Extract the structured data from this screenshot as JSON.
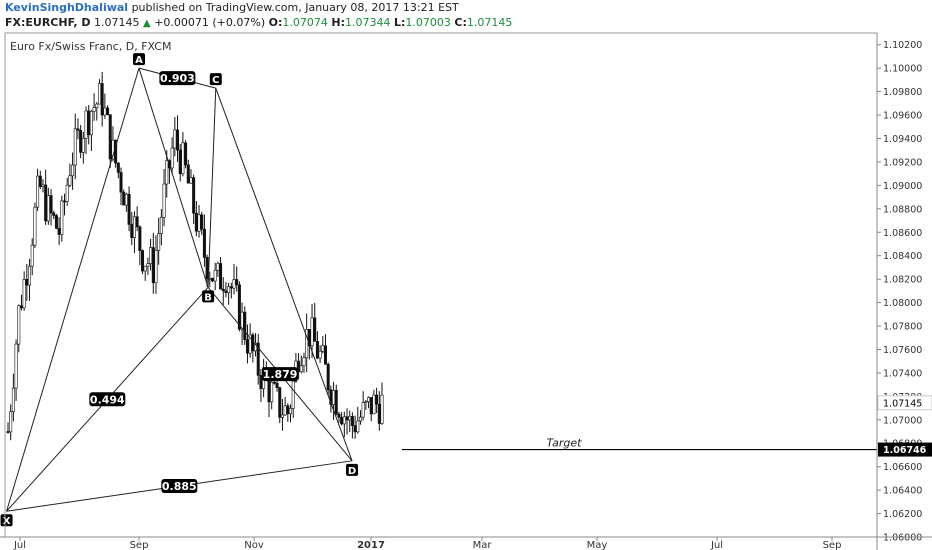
{
  "header": {
    "author": "KevinSinghDhaliwal",
    "published_text": "published on TradingView.com, January 08, 2017 13:21 EST",
    "symbol": "FX:EURCHF, D",
    "last": "1.07145",
    "change_arrow": "▲",
    "change": "+0.00071 (+0.07%)",
    "o_label": "O:",
    "o_value": "1.07074",
    "h_label": "H:",
    "h_value": "1.07344",
    "l_label": "L:",
    "l_value": "1.07003",
    "c_label": "C:",
    "c_value": "1.07145"
  },
  "chart_data": {
    "type": "candlestick",
    "title": "Euro Fx/Swiss Franc, D, FXCM",
    "x_tick_labels": [
      "Jul",
      "Sep",
      "Nov",
      "2017",
      "Mar",
      "May",
      "Jul",
      "Sep"
    ],
    "y_tick_labels": [
      "1.10200",
      "1.10000",
      "1.09800",
      "1.09600",
      "1.09400",
      "1.09200",
      "1.09000",
      "1.08800",
      "1.08600",
      "1.08400",
      "1.08200",
      "1.08000",
      "1.07800",
      "1.07600",
      "1.07400",
      "1.07200",
      "1.07000",
      "1.06800",
      "1.06600",
      "1.06400",
      "1.06200",
      "1.06000"
    ],
    "ylim": [
      1.06,
      1.103
    ],
    "last_price_label": "1.07145",
    "target_price_label": "1.06746",
    "target_label": "Target",
    "target_price": 1.06746,
    "pattern_points": [
      {
        "label": "X",
        "date": "2016-06-24",
        "price": 1.0622
      },
      {
        "label": "A",
        "date": "2016-09-01",
        "price": 1.1
      },
      {
        "label": "B",
        "date": "2016-10-07",
        "price": 1.0813
      },
      {
        "label": "C",
        "date": "2016-10-11",
        "price": 1.0983
      },
      {
        "label": "D",
        "date": "2016-12-21",
        "price": 1.0665
      }
    ],
    "ratios": [
      {
        "label": "0.903",
        "between": "A-C"
      },
      {
        "label": "0.494",
        "between": "X-B"
      },
      {
        "label": "1.879",
        "between": "B-D"
      },
      {
        "label": "0.885",
        "between": "X-D"
      }
    ],
    "candles_close_path": [
      1.069,
      1.079,
      1.084,
      1.09,
      1.0875,
      1.086,
      1.092,
      1.0945,
      1.0965,
      1.0975,
      1.093,
      1.09,
      1.087,
      1.084,
      1.083,
      1.089,
      1.094,
      1.0915,
      1.0875,
      1.0838,
      1.0818,
      1.0825,
      1.08,
      1.077,
      1.0745,
      1.073,
      1.0712,
      1.0706,
      1.076,
      1.0775,
      1.0755,
      1.073,
      1.0712,
      1.0695,
      1.0703,
      1.0713,
      1.0714
    ]
  }
}
